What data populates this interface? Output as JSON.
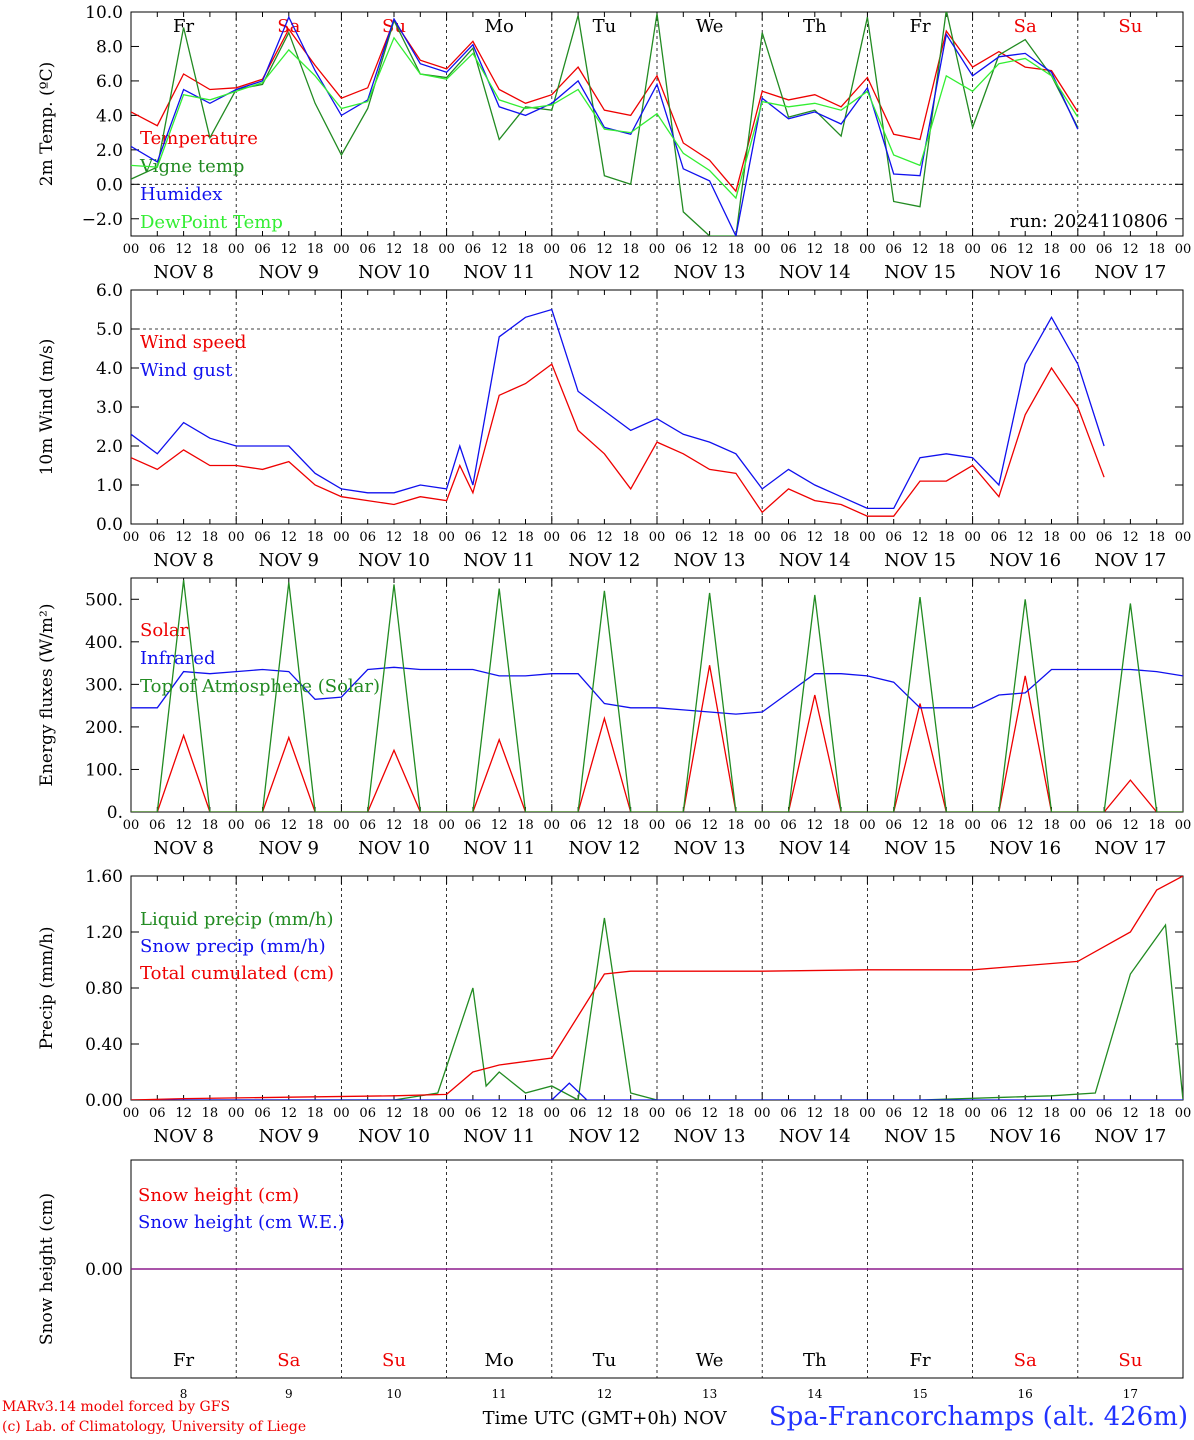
{
  "meta": {
    "model_line": "MARv3.14 model forced by GFS",
    "lab_line": "(c) Lab. of Climatology, University of Liege",
    "station": "Spa-Francorchamps (alt. 426m)",
    "xaxis_title": "Time UTC (GMT+0h)",
    "month_label": "NOV",
    "run_label": "run: 2024110806"
  },
  "days": [
    8,
    9,
    10,
    11,
    12,
    13,
    14,
    15,
    16,
    17
  ],
  "weekdays": [
    {
      "label": "Fr",
      "color": "#000000"
    },
    {
      "label": "Sa",
      "color": "#ee0000"
    },
    {
      "label": "Su",
      "color": "#ee0000"
    },
    {
      "label": "Mo",
      "color": "#000000"
    },
    {
      "label": "Tu",
      "color": "#000000"
    },
    {
      "label": "We",
      "color": "#000000"
    },
    {
      "label": "Th",
      "color": "#000000"
    },
    {
      "label": "Fr",
      "color": "#000000"
    },
    {
      "label": "Sa",
      "color": "#ee0000"
    },
    {
      "label": "Su",
      "color": "#ee0000"
    }
  ],
  "hour_ticks": [
    "00",
    "06",
    "12",
    "18"
  ],
  "colors": {
    "red": "#ee0000",
    "green": "#228b22",
    "blue": "#1010ee",
    "lightgreen": "#33ee33",
    "purple": "#881188",
    "black": "#000000"
  },
  "chart_data": [
    {
      "type": "line",
      "ylabel": "2m Temp. (ºC)",
      "ylim": [
        -3,
        10
      ],
      "yticks": [
        10,
        8,
        6,
        4,
        2,
        0,
        -2
      ],
      "ytick_labels": [
        "10.0",
        "8.0",
        "6.0",
        "4.0",
        "2.0",
        "0.0",
        "−2.0"
      ],
      "dashed_hline": 0,
      "x_unit": "hours since Nov 8 00 UTC",
      "series": [
        {
          "name": "Temperature",
          "color": "red",
          "x": [
            0,
            6,
            12,
            18,
            24,
            30,
            36,
            42,
            48,
            54,
            60,
            66,
            72,
            78,
            84,
            90,
            96,
            102,
            108,
            114,
            120,
            126,
            132,
            138,
            144,
            150,
            156,
            162,
            168,
            174,
            180,
            186,
            192,
            198,
            204,
            210,
            216,
            222,
            228,
            234,
            240
          ],
          "values": [
            4.2,
            3.4,
            6.4,
            5.5,
            5.6,
            6.1,
            9.0,
            6.9,
            5.0,
            5.6,
            9.5,
            7.2,
            6.7,
            8.3,
            5.5,
            4.7,
            5.2,
            6.8,
            4.3,
            4.0,
            6.3,
            2.4,
            1.4,
            -0.4,
            5.4,
            4.9,
            5.2,
            4.5,
            6.2,
            2.9,
            2.6,
            8.9,
            6.8,
            7.7,
            6.8,
            6.6,
            4.2,
            null,
            null,
            null,
            null
          ]
        },
        {
          "name": "Vigne temp",
          "color": "green",
          "x": [
            0,
            6,
            12,
            18,
            24,
            30,
            36,
            42,
            48,
            54,
            60,
            66,
            72,
            78,
            84,
            90,
            96,
            102,
            108,
            114,
            120,
            126,
            132,
            138,
            144,
            150,
            156,
            162,
            168,
            174,
            180,
            186,
            192,
            198,
            204,
            210,
            216,
            222,
            228,
            234,
            240
          ],
          "values": [
            0.3,
            1.0,
            9.1,
            2.7,
            5.5,
            5.8,
            8.8,
            4.7,
            1.7,
            4.4,
            9.5,
            6.4,
            6.2,
            7.9,
            2.6,
            4.5,
            4.3,
            9.8,
            0.5,
            0.0,
            9.9,
            -1.6,
            -3.0,
            -3.0,
            8.8,
            3.9,
            4.3,
            2.8,
            9.7,
            -1.0,
            -1.3,
            10.1,
            3.3,
            7.5,
            8.4,
            6.3,
            3.3,
            null,
            null,
            null,
            null
          ]
        },
        {
          "name": "Humidex",
          "color": "blue",
          "x": [
            0,
            6,
            12,
            18,
            24,
            30,
            36,
            42,
            48,
            54,
            60,
            66,
            72,
            78,
            84,
            90,
            96,
            102,
            108,
            114,
            120,
            126,
            132,
            138,
            144,
            150,
            156,
            162,
            168,
            174,
            180,
            186,
            192,
            198,
            204,
            210,
            216,
            222,
            228,
            234,
            240
          ],
          "values": [
            2.2,
            1.3,
            5.5,
            4.7,
            5.5,
            6.0,
            9.7,
            6.6,
            4.0,
            4.9,
            9.6,
            7.0,
            6.5,
            8.1,
            4.5,
            4.0,
            4.7,
            6.0,
            3.3,
            2.9,
            5.8,
            0.9,
            0.2,
            -3.0,
            5.0,
            3.8,
            4.2,
            3.5,
            5.6,
            0.6,
            0.5,
            8.7,
            6.3,
            7.4,
            7.6,
            6.5,
            3.2,
            null,
            null,
            null,
            null
          ]
        },
        {
          "name": "DewPoint Temp",
          "color": "lightgreen",
          "x": [
            0,
            6,
            12,
            18,
            24,
            30,
            36,
            42,
            48,
            54,
            60,
            66,
            72,
            78,
            84,
            90,
            96,
            102,
            108,
            114,
            120,
            126,
            132,
            138,
            144,
            150,
            156,
            162,
            168,
            174,
            180,
            186,
            192,
            198,
            204,
            210,
            216,
            222,
            228,
            234,
            240
          ],
          "values": [
            1.1,
            1.0,
            5.2,
            4.9,
            5.4,
            5.9,
            7.8,
            6.3,
            4.4,
            4.8,
            8.5,
            6.4,
            6.1,
            7.6,
            4.9,
            4.4,
            4.6,
            5.5,
            3.2,
            3.0,
            4.1,
            1.8,
            0.8,
            -0.8,
            4.8,
            4.5,
            4.7,
            4.3,
            5.4,
            1.7,
            1.1,
            6.3,
            5.4,
            7.0,
            7.3,
            6.3,
            3.9,
            null,
            null,
            null,
            null
          ]
        }
      ]
    },
    {
      "type": "line",
      "ylabel": "10m Wind (m/s)",
      "ylim": [
        0,
        6
      ],
      "yticks": [
        6,
        5,
        4,
        3,
        2,
        1,
        0
      ],
      "ytick_labels": [
        "6.0",
        "5.0",
        "4.0",
        "3.0",
        "2.0",
        "1.0",
        "0.0"
      ],
      "dashed_hline": 5,
      "series": [
        {
          "name": "Wind speed",
          "color": "red",
          "x": [
            0,
            6,
            12,
            18,
            24,
            30,
            36,
            42,
            48,
            54,
            60,
            66,
            72,
            75,
            78,
            84,
            90,
            96,
            102,
            108,
            114,
            120,
            126,
            132,
            138,
            144,
            150,
            156,
            162,
            168,
            174,
            180,
            186,
            192,
            198,
            204,
            210,
            216,
            222,
            228,
            234,
            240
          ],
          "values": [
            1.7,
            1.4,
            1.9,
            1.5,
            1.5,
            1.4,
            1.6,
            1.0,
            0.7,
            0.6,
            0.5,
            0.7,
            0.6,
            1.5,
            0.8,
            3.3,
            3.6,
            4.1,
            2.4,
            1.8,
            0.9,
            2.1,
            1.8,
            1.4,
            1.3,
            0.3,
            0.9,
            0.6,
            0.5,
            0.2,
            0.2,
            1.1,
            1.1,
            1.5,
            0.7,
            2.8,
            4.0,
            3.0,
            1.2,
            null,
            null,
            null
          ]
        },
        {
          "name": "Wind gust",
          "color": "blue",
          "x": [
            0,
            6,
            12,
            18,
            24,
            30,
            36,
            42,
            48,
            54,
            60,
            66,
            72,
            75,
            78,
            84,
            90,
            96,
            102,
            108,
            114,
            120,
            126,
            132,
            138,
            144,
            150,
            156,
            162,
            168,
            174,
            180,
            186,
            192,
            198,
            204,
            210,
            216,
            222,
            228,
            234,
            240
          ],
          "values": [
            2.3,
            1.8,
            2.6,
            2.2,
            2.0,
            2.0,
            2.0,
            1.3,
            0.9,
            0.8,
            0.8,
            1.0,
            0.9,
            2.0,
            1.0,
            4.8,
            5.3,
            5.5,
            3.4,
            2.9,
            2.4,
            2.7,
            2.3,
            2.1,
            1.8,
            0.9,
            1.4,
            1.0,
            0.7,
            0.4,
            0.4,
            1.7,
            1.8,
            1.7,
            1.0,
            4.1,
            5.3,
            4.1,
            2.0,
            null,
            null,
            null
          ]
        }
      ]
    },
    {
      "type": "line",
      "ylabel": "Energy fluxes (W/m²)",
      "ylim": [
        0,
        550
      ],
      "yticks": [
        500,
        400,
        300,
        200,
        100,
        0
      ],
      "ytick_labels": [
        "500.",
        "400.",
        "300.",
        "200.",
        "100.",
        "0."
      ],
      "series": [
        {
          "name": "Solar",
          "color": "red",
          "x": [
            0,
            6,
            12,
            18,
            24,
            30,
            36,
            42,
            48,
            54,
            60,
            66,
            72,
            78,
            84,
            90,
            96,
            102,
            108,
            114,
            120,
            126,
            132,
            138,
            144,
            150,
            156,
            162,
            168,
            174,
            180,
            186,
            192,
            198,
            204,
            210,
            216,
            222,
            228,
            234,
            240
          ],
          "values": [
            0,
            0,
            180,
            0,
            0,
            0,
            175,
            0,
            0,
            0,
            145,
            0,
            0,
            0,
            170,
            0,
            0,
            0,
            220,
            0,
            0,
            0,
            345,
            0,
            0,
            0,
            275,
            0,
            0,
            0,
            255,
            0,
            0,
            0,
            320,
            0,
            0,
            0,
            75,
            0,
            0
          ]
        },
        {
          "name": "Infrared",
          "color": "blue",
          "x": [
            0,
            6,
            12,
            18,
            24,
            30,
            36,
            42,
            48,
            54,
            60,
            66,
            72,
            78,
            84,
            90,
            96,
            102,
            108,
            114,
            120,
            126,
            132,
            138,
            144,
            150,
            156,
            162,
            168,
            174,
            180,
            186,
            192,
            198,
            204,
            210,
            216,
            222,
            228,
            234,
            240
          ],
          "values": [
            245,
            245,
            330,
            325,
            330,
            335,
            330,
            265,
            270,
            335,
            340,
            335,
            335,
            335,
            320,
            320,
            325,
            325,
            255,
            245,
            245,
            240,
            235,
            230,
            235,
            280,
            325,
            325,
            320,
            305,
            245,
            245,
            245,
            275,
            280,
            335,
            335,
            335,
            335,
            330,
            320
          ]
        },
        {
          "name": "Top of Atmosphere (Solar)",
          "color": "green",
          "x": [
            0,
            6,
            12,
            18,
            24,
            30,
            36,
            42,
            48,
            54,
            60,
            66,
            72,
            78,
            84,
            90,
            96,
            102,
            108,
            114,
            120,
            126,
            132,
            138,
            144,
            150,
            156,
            162,
            168,
            174,
            180,
            186,
            192,
            198,
            204,
            210,
            216,
            222,
            228,
            234,
            240
          ],
          "values": [
            0,
            0,
            545,
            0,
            0,
            0,
            540,
            0,
            0,
            0,
            535,
            0,
            0,
            0,
            525,
            0,
            0,
            0,
            520,
            0,
            0,
            0,
            515,
            0,
            0,
            0,
            510,
            0,
            0,
            0,
            505,
            0,
            0,
            0,
            500,
            0,
            0,
            0,
            490,
            0,
            0
          ]
        }
      ]
    },
    {
      "type": "line",
      "ylabel": "Precip (mm/h)",
      "ylim": [
        0,
        1.6
      ],
      "yticks": [
        1.6,
        1.2,
        0.8,
        0.4,
        0
      ],
      "ytick_labels": [
        "1.60",
        "1.20",
        "0.80",
        "0.40",
        "0.00"
      ],
      "series": [
        {
          "name": "Liquid precip (mm/h)",
          "color": "green",
          "x": [
            0,
            60,
            70,
            78,
            81,
            84,
            90,
            96,
            102,
            108,
            114,
            120,
            180,
            200,
            210,
            220,
            228,
            236,
            240
          ],
          "values": [
            0,
            0,
            0.05,
            0.8,
            0.1,
            0.2,
            0.05,
            0.1,
            0.0,
            1.3,
            0.05,
            0.0,
            0.0,
            0.02,
            0.03,
            0.05,
            0.9,
            1.25,
            0.0
          ]
        },
        {
          "name": "Snow precip (mm/h)",
          "color": "blue",
          "x": [
            0,
            96,
            100,
            104,
            240
          ],
          "values": [
            0,
            0,
            0.12,
            0,
            0
          ]
        },
        {
          "name": "Total cumulated (cm)",
          "color": "red",
          "x": [
            0,
            12,
            36,
            60,
            72,
            78,
            84,
            96,
            102,
            108,
            114,
            120,
            144,
            168,
            192,
            204,
            216,
            228,
            234,
            240
          ],
          "values": [
            0.0,
            0.01,
            0.02,
            0.03,
            0.04,
            0.2,
            0.25,
            0.3,
            0.6,
            0.9,
            0.92,
            0.92,
            0.92,
            0.93,
            0.93,
            0.96,
            0.99,
            1.2,
            1.5,
            1.6
          ]
        }
      ]
    },
    {
      "type": "line",
      "ylabel": "Snow height (cm)",
      "ylim": [
        -1,
        1
      ],
      "yticks": [
        0
      ],
      "ytick_labels": [
        "0.00"
      ],
      "series": [
        {
          "name": "Snow height (cm)",
          "color": "red",
          "x": [
            0,
            240
          ],
          "values": [
            0,
            0
          ]
        },
        {
          "name": "Snow height (cm W.E.)",
          "color": "blue",
          "x": [
            0,
            240
          ],
          "values": [
            0,
            0
          ]
        }
      ]
    }
  ]
}
